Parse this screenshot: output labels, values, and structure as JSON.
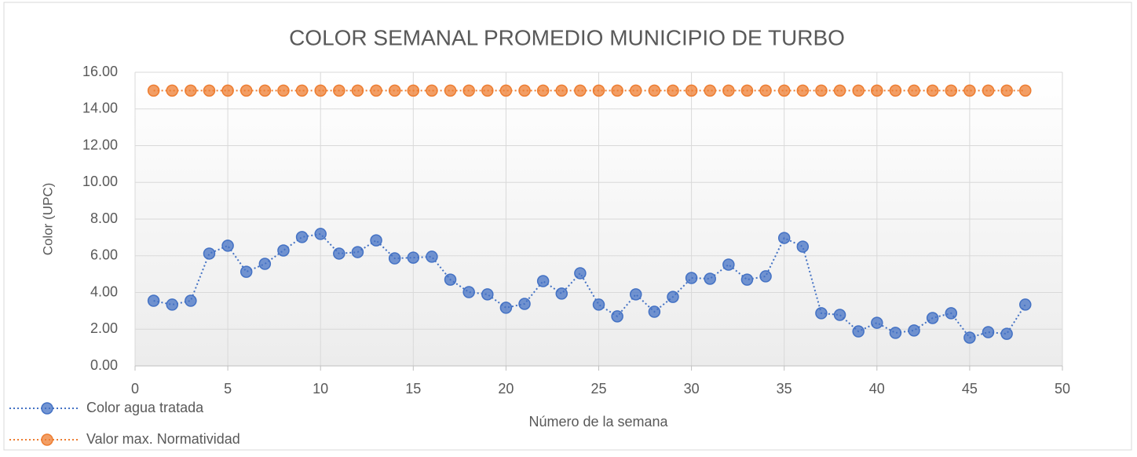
{
  "chart_data": {
    "type": "line",
    "title": "COLOR SEMANAL PROMEDIO MUNICIPIO DE TURBO",
    "x_label": "Número de la semana",
    "y_label": "Color (UPC)",
    "x": [
      1,
      2,
      3,
      4,
      5,
      6,
      7,
      8,
      9,
      10,
      11,
      12,
      13,
      14,
      15,
      16,
      17,
      18,
      19,
      20,
      21,
      22,
      23,
      24,
      25,
      26,
      27,
      28,
      29,
      30,
      31,
      32,
      33,
      34,
      35,
      36,
      37,
      38,
      39,
      40,
      41,
      42,
      43,
      44,
      45,
      46,
      47,
      48
    ],
    "series": [
      {
        "name": "Color agua tratada",
        "color": "#4472c4",
        "values": [
          3.55,
          3.34,
          3.55,
          6.12,
          6.55,
          5.13,
          5.56,
          6.29,
          7.02,
          7.19,
          6.12,
          6.2,
          6.84,
          5.86,
          5.9,
          5.95,
          4.7,
          4.02,
          3.9,
          3.17,
          3.38,
          4.62,
          3.94,
          5.05,
          3.34,
          2.7,
          3.9,
          2.95,
          3.76,
          4.79,
          4.75,
          5.52,
          4.7,
          4.88,
          6.97,
          6.5,
          2.87,
          2.78,
          1.88,
          2.35,
          1.8,
          1.93,
          2.61,
          2.87,
          1.54,
          1.84,
          1.75,
          3.34
        ]
      },
      {
        "name": "Valor max. Normatividad",
        "color": "#ed7d31",
        "values": [
          15,
          15,
          15,
          15,
          15,
          15,
          15,
          15,
          15,
          15,
          15,
          15,
          15,
          15,
          15,
          15,
          15,
          15,
          15,
          15,
          15,
          15,
          15,
          15,
          15,
          15,
          15,
          15,
          15,
          15,
          15,
          15,
          15,
          15,
          15,
          15,
          15,
          15,
          15,
          15,
          15,
          15,
          15,
          15,
          15,
          15,
          15,
          15
        ]
      }
    ],
    "xlim": [
      0,
      50
    ],
    "xticks": [
      0,
      5,
      10,
      15,
      20,
      25,
      30,
      35,
      40,
      45,
      50
    ],
    "ylim": [
      0,
      16
    ],
    "yticks": [
      {
        "value": 0,
        "label": "0.00"
      },
      {
        "value": 2,
        "label": "2.00"
      },
      {
        "value": 4,
        "label": "4.00"
      },
      {
        "value": 6,
        "label": "6.00"
      },
      {
        "value": 8,
        "label": "8.00"
      },
      {
        "value": 10,
        "label": "10.00"
      },
      {
        "value": 12,
        "label": "12.00"
      },
      {
        "value": 14,
        "label": "14.00"
      },
      {
        "value": 16,
        "label": "16.00"
      }
    ],
    "grid": true,
    "legend": "bottom-left"
  }
}
